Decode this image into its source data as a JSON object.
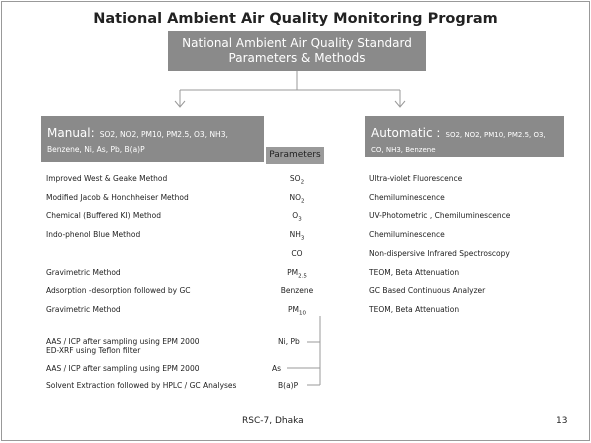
{
  "title": "National Ambient Air Quality Monitoring Program",
  "standard_box": {
    "line1": "National Ambient Air Quality Standard",
    "line2": "Parameters & Methods"
  },
  "manual": {
    "label": "Manual:",
    "list": "SO2, NO2, PM10, PM2.5, O3, NH3, Benzene, Ni, As, Pb, B(a)P"
  },
  "automatic": {
    "label": "Automatic :",
    "list": "SO2, NO2, PM10, PM2.5, O3, CO, NH3, Benzene"
  },
  "parameters_header": "Parameters",
  "rows": [
    {
      "manual": "Improved West & Geake Method",
      "param": "SO",
      "param_sub": "2",
      "automatic": "Ultra-violet Fluorescence"
    },
    {
      "manual": "Modified Jacob & Honchheiser Method",
      "param": "NO",
      "param_sub": "2",
      "automatic": "Chemiluminescence"
    },
    {
      "manual": "Chemical (Buffered KI) Method",
      "param": "O",
      "param_sub": "3",
      "automatic": "UV-Photometric , Chemiluminescence"
    },
    {
      "manual": "Indo-phenol Blue Method",
      "param": "NH",
      "param_sub": "3",
      "automatic": "Chemiluminescence"
    },
    {
      "param": "CO",
      "automatic": "Non-dispersive Infrared Spectroscopy"
    },
    {
      "manual": "Gravimetric Method",
      "param": "PM",
      "param_sub": "2.5",
      "automatic": "TEOM, Beta Attenuation"
    },
    {
      "manual": "Adsorption -desorption followed by GC",
      "param": "Benzene",
      "automatic": "GC Based Continuous Analyzer"
    },
    {
      "manual": "Gravimetric Method",
      "param": "PM",
      "param_sub": "10",
      "automatic": "TEOM, Beta Attenuation"
    }
  ],
  "metals": [
    {
      "manual": "AAS / ICP after sampling using EPM 2000",
      "manual2": "ED-XRF using Teflon filter",
      "param": "Ni, Pb"
    },
    {
      "manual": "AAS / ICP after sampling using EPM 2000",
      "param": "As"
    },
    {
      "manual": "Solvent Extraction followed by HPLC / GC Analyses",
      "param": "B(a)P"
    }
  ],
  "footer": {
    "left": "RSC-7, Dhaka",
    "page": "13"
  }
}
